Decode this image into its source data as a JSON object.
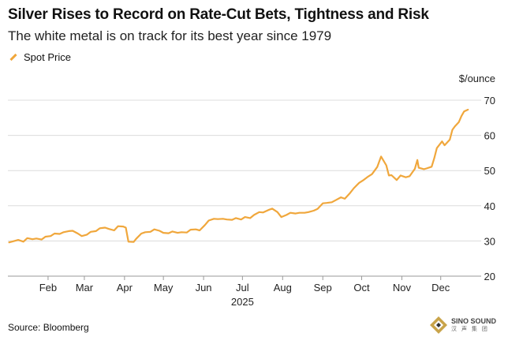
{
  "chart_data": {
    "type": "line",
    "title": "Silver Rises to Record on Rate-Cut Bets, Tightness and Risk",
    "subtitle": "The white metal is on track for its best year since 1979",
    "ylabel": "$/ounce",
    "source": "Source: Bloomberg",
    "ylim": [
      20,
      70
    ],
    "yticks": [
      20,
      30,
      40,
      50,
      60,
      70
    ],
    "xlabel": "2025",
    "month_ticks": [
      {
        "label": "Feb",
        "date": "2025-02-01"
      },
      {
        "label": "Mar",
        "date": "2025-03-01"
      },
      {
        "label": "Apr",
        "date": "2025-04-01"
      },
      {
        "label": "May",
        "date": "2025-05-01"
      },
      {
        "label": "Jun",
        "date": "2025-06-01"
      },
      {
        "label": "Jul",
        "date": "2025-07-01"
      },
      {
        "label": "Aug",
        "date": "2025-08-01"
      },
      {
        "label": "Sep",
        "date": "2025-09-01"
      },
      {
        "label": "Oct",
        "date": "2025-10-01"
      },
      {
        "label": "Nov",
        "date": "2025-11-01"
      },
      {
        "label": "Dec",
        "date": "2025-12-01"
      }
    ],
    "grid": true,
    "legend": "top-left",
    "series": [
      {
        "name": "Spot Price",
        "color": "#f0a73c",
        "points": [
          [
            "2025-01-02",
            29.6
          ],
          [
            "2025-01-06",
            30.0
          ],
          [
            "2025-01-09",
            30.3
          ],
          [
            "2025-01-13",
            29.8
          ],
          [
            "2025-01-16",
            30.8
          ],
          [
            "2025-01-20",
            30.5
          ],
          [
            "2025-01-23",
            30.7
          ],
          [
            "2025-01-27",
            30.4
          ],
          [
            "2025-01-30",
            31.2
          ],
          [
            "2025-02-03",
            31.4
          ],
          [
            "2025-02-06",
            32.1
          ],
          [
            "2025-02-10",
            32.0
          ],
          [
            "2025-02-13",
            32.5
          ],
          [
            "2025-02-17",
            32.8
          ],
          [
            "2025-02-20",
            32.9
          ],
          [
            "2025-02-24",
            32.1
          ],
          [
            "2025-02-27",
            31.4
          ],
          [
            "2025-03-03",
            31.8
          ],
          [
            "2025-03-06",
            32.6
          ],
          [
            "2025-03-10",
            32.8
          ],
          [
            "2025-03-13",
            33.6
          ],
          [
            "2025-03-17",
            33.8
          ],
          [
            "2025-03-20",
            33.4
          ],
          [
            "2025-03-24",
            33.0
          ],
          [
            "2025-03-27",
            34.2
          ],
          [
            "2025-03-31",
            34.1
          ],
          [
            "2025-04-02",
            33.8
          ],
          [
            "2025-04-04",
            29.8
          ],
          [
            "2025-04-08",
            29.7
          ],
          [
            "2025-04-10",
            30.6
          ],
          [
            "2025-04-14",
            32.1
          ],
          [
            "2025-04-17",
            32.5
          ],
          [
            "2025-04-21",
            32.6
          ],
          [
            "2025-04-24",
            33.3
          ],
          [
            "2025-04-28",
            32.9
          ],
          [
            "2025-05-01",
            32.3
          ],
          [
            "2025-05-05",
            32.2
          ],
          [
            "2025-05-08",
            32.7
          ],
          [
            "2025-05-12",
            32.3
          ],
          [
            "2025-05-15",
            32.5
          ],
          [
            "2025-05-19",
            32.4
          ],
          [
            "2025-05-22",
            33.2
          ],
          [
            "2025-05-26",
            33.3
          ],
          [
            "2025-05-29",
            33.0
          ],
          [
            "2025-06-02",
            34.5
          ],
          [
            "2025-06-05",
            35.8
          ],
          [
            "2025-06-09",
            36.3
          ],
          [
            "2025-06-12",
            36.2
          ],
          [
            "2025-06-16",
            36.3
          ],
          [
            "2025-06-19",
            36.1
          ],
          [
            "2025-06-23",
            36.0
          ],
          [
            "2025-06-26",
            36.5
          ],
          [
            "2025-06-30",
            36.1
          ],
          [
            "2025-07-03",
            36.8
          ],
          [
            "2025-07-07",
            36.5
          ],
          [
            "2025-07-10",
            37.4
          ],
          [
            "2025-07-14",
            38.2
          ],
          [
            "2025-07-17",
            38.1
          ],
          [
            "2025-07-21",
            38.8
          ],
          [
            "2025-07-24",
            39.2
          ],
          [
            "2025-07-28",
            38.2
          ],
          [
            "2025-07-31",
            36.8
          ],
          [
            "2025-08-04",
            37.4
          ],
          [
            "2025-08-07",
            38.0
          ],
          [
            "2025-08-11",
            37.8
          ],
          [
            "2025-08-14",
            38.0
          ],
          [
            "2025-08-18",
            38.0
          ],
          [
            "2025-08-21",
            38.2
          ],
          [
            "2025-08-25",
            38.6
          ],
          [
            "2025-08-28",
            39.1
          ],
          [
            "2025-09-01",
            40.7
          ],
          [
            "2025-09-04",
            40.8
          ],
          [
            "2025-09-08",
            41.0
          ],
          [
            "2025-09-11",
            41.6
          ],
          [
            "2025-09-15",
            42.4
          ],
          [
            "2025-09-18",
            42.0
          ],
          [
            "2025-09-22",
            43.6
          ],
          [
            "2025-09-25",
            45.0
          ],
          [
            "2025-09-29",
            46.5
          ],
          [
            "2025-10-02",
            47.2
          ],
          [
            "2025-10-06",
            48.3
          ],
          [
            "2025-10-09",
            49.0
          ],
          [
            "2025-10-13",
            51.0
          ],
          [
            "2025-10-16",
            54.0
          ],
          [
            "2025-10-20",
            51.5
          ],
          [
            "2025-10-22",
            48.6
          ],
          [
            "2025-10-24",
            48.7
          ],
          [
            "2025-10-28",
            47.3
          ],
          [
            "2025-10-31",
            48.6
          ],
          [
            "2025-11-04",
            48.1
          ],
          [
            "2025-11-07",
            48.4
          ],
          [
            "2025-11-11",
            50.5
          ],
          [
            "2025-11-13",
            53.0
          ],
          [
            "2025-11-14",
            50.8
          ],
          [
            "2025-11-18",
            50.4
          ],
          [
            "2025-11-20",
            50.6
          ],
          [
            "2025-11-24",
            51.1
          ],
          [
            "2025-11-26",
            53.5
          ],
          [
            "2025-11-28",
            56.4
          ],
          [
            "2025-12-02",
            58.3
          ],
          [
            "2025-12-04",
            57.2
          ],
          [
            "2025-12-08",
            58.8
          ],
          [
            "2025-12-10",
            61.6
          ],
          [
            "2025-12-12",
            62.6
          ],
          [
            "2025-12-15",
            63.8
          ],
          [
            "2025-12-17",
            65.5
          ],
          [
            "2025-12-19",
            66.8
          ],
          [
            "2025-12-22",
            67.3
          ]
        ]
      }
    ]
  },
  "watermark": {
    "name": "SINO SOUND",
    "sub": "汉 声 集 团"
  }
}
